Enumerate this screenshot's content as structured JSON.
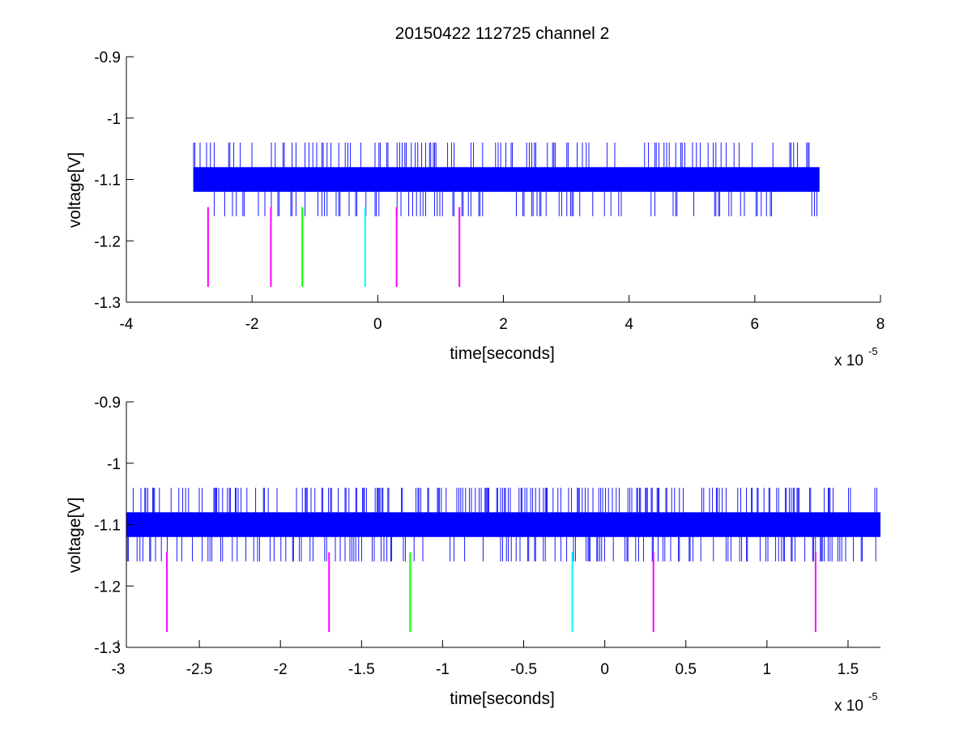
{
  "figure": {
    "title": "20150422 112725 channel 2"
  },
  "chart_data": [
    {
      "type": "line",
      "title": "20150422 112725 channel 2",
      "xlabel": "time[seconds]",
      "ylabel": "voltage[V]",
      "x_exponent_base": "x 10",
      "x_exponent_power": "-5",
      "xlim": [
        -4,
        8
      ],
      "ylim": [
        -1.3,
        -0.9
      ],
      "xticks": [
        -4,
        -2,
        0,
        2,
        4,
        6,
        8
      ],
      "xtick_labels": [
        "-4",
        "-2",
        "0",
        "2",
        "4",
        "6",
        "8"
      ],
      "yticks": [
        -0.9,
        -1.0,
        -1.1,
        -1.2,
        -1.3
      ],
      "ytick_labels": [
        "-0.9",
        "-1",
        "-1.1",
        "-1.2",
        "-1.3"
      ],
      "grid": false,
      "signal": {
        "color": "#0000ff",
        "x_range": [
          -2.93,
          7.03
        ],
        "band_levels": [
          -1.12,
          -1.08
        ],
        "spike_levels": [
          -1.16,
          -1.04
        ]
      },
      "markers": [
        {
          "x": -2.7,
          "y_range": [
            -1.275,
            -1.145
          ],
          "color": "#ff00ff"
        },
        {
          "x": -1.7,
          "y_range": [
            -1.275,
            -1.145
          ],
          "color": "#ff00ff"
        },
        {
          "x": -1.2,
          "y_range": [
            -1.275,
            -1.145
          ],
          "color": "#00ff00"
        },
        {
          "x": -0.2,
          "y_range": [
            -1.275,
            -1.145
          ],
          "color": "#00ffff"
        },
        {
          "x": 0.3,
          "y_range": [
            -1.275,
            -1.145
          ],
          "color": "#ff00ff"
        },
        {
          "x": 1.3,
          "y_range": [
            -1.275,
            -1.145
          ],
          "color": "#ff00ff"
        }
      ]
    },
    {
      "type": "line",
      "title": "",
      "xlabel": "time[seconds]",
      "ylabel": "voltage[V]",
      "x_exponent_base": "x 10",
      "x_exponent_power": "-5",
      "xlim": [
        -2.95,
        1.7
      ],
      "ylim": [
        -1.3,
        -0.9
      ],
      "xticks": [
        -3,
        -2.5,
        -2,
        -1.5,
        -1,
        -0.5,
        0,
        0.5,
        1,
        1.5
      ],
      "xtick_labels": [
        "-3",
        "-2.5",
        "-2",
        "-1.5",
        "-1",
        "-0.5",
        "0",
        "0.5",
        "1",
        "1.5"
      ],
      "yticks": [
        -0.9,
        -1.0,
        -1.1,
        -1.2,
        -1.3
      ],
      "ytick_labels": [
        "-0.9",
        "-1",
        "-1.1",
        "-1.2",
        "-1.3"
      ],
      "grid": false,
      "signal": {
        "color": "#0000ff",
        "x_range": [
          -2.95,
          1.7
        ],
        "band_levels": [
          -1.12,
          -1.08
        ],
        "spike_levels": [
          -1.16,
          -1.04
        ]
      },
      "markers": [
        {
          "x": -2.7,
          "y_range": [
            -1.275,
            -1.145
          ],
          "color": "#ff00ff"
        },
        {
          "x": -1.7,
          "y_range": [
            -1.275,
            -1.145
          ],
          "color": "#ff00ff"
        },
        {
          "x": -1.2,
          "y_range": [
            -1.275,
            -1.145
          ],
          "color": "#00ff00"
        },
        {
          "x": -0.2,
          "y_range": [
            -1.275,
            -1.145
          ],
          "color": "#00ffff"
        },
        {
          "x": 0.3,
          "y_range": [
            -1.275,
            -1.145
          ],
          "color": "#ff00ff"
        },
        {
          "x": 1.3,
          "y_range": [
            -1.275,
            -1.145
          ],
          "color": "#ff00ff"
        }
      ]
    }
  ]
}
